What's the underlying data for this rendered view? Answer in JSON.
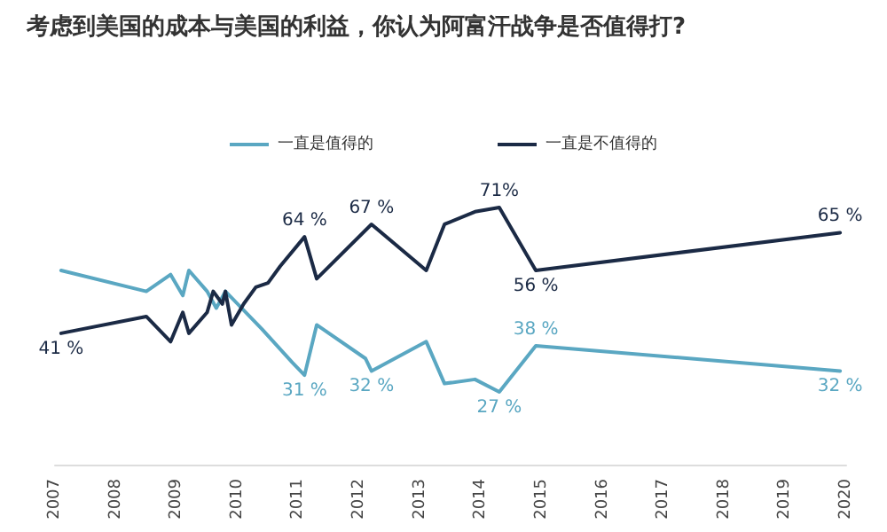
{
  "chart_data": {
    "type": "line",
    "title": "考虑到美国的成本与美国的利益，你认为阿富汗战争是否值得打?",
    "xlim": [
      2007,
      2020
    ],
    "xticks": [
      2007,
      2008,
      2009,
      2010,
      2011,
      2012,
      2013,
      2014,
      2015,
      2016,
      2017,
      2018,
      2019,
      2020
    ],
    "tick_labels": "x",
    "grid": false,
    "legend": "top",
    "marker": "none",
    "line_style": "solid",
    "series": [
      {
        "name": "一直是值得的",
        "color": "#5aa7c2",
        "x": [
          2007.1,
          2008.5,
          2008.9,
          2009.1,
          2009.2,
          2009.5,
          2009.65,
          2009.8,
          2010.4,
          2010.9,
          2011.1,
          2011.3,
          2012.1,
          2012.2,
          2013.1,
          2013.4,
          2013.9,
          2014.3,
          2014.9,
          2019.9
        ],
        "values": [
          56,
          51,
          55,
          50,
          56,
          51,
          47,
          51,
          42,
          34,
          31,
          43,
          35,
          32,
          39,
          29,
          30,
          27,
          38,
          32
        ],
        "value_labels": [
          null,
          null,
          null,
          null,
          null,
          null,
          null,
          null,
          null,
          null,
          "31 %",
          null,
          null,
          "32 %",
          null,
          null,
          null,
          "27 %",
          "38 %",
          "32 %"
        ]
      },
      {
        "name": "一直是不值得的",
        "color": "#1b2a45",
        "x": [
          2007.1,
          2008.5,
          2008.9,
          2009.1,
          2009.2,
          2009.5,
          2009.6,
          2009.75,
          2009.8,
          2009.9,
          2010.1,
          2010.3,
          2010.5,
          2010.7,
          2011.1,
          2011.3,
          2012.2,
          2013.1,
          2013.4,
          2013.9,
          2014.3,
          2014.9,
          2019.9
        ],
        "values": [
          41,
          45,
          39,
          46,
          41,
          46,
          51,
          48,
          51,
          43,
          48,
          52,
          53,
          57,
          64,
          54,
          67,
          56,
          67,
          70,
          71,
          56,
          65
        ],
        "value_labels": [
          "41 %",
          null,
          null,
          null,
          null,
          null,
          null,
          null,
          null,
          null,
          null,
          null,
          null,
          null,
          "64 %",
          null,
          "67 %",
          null,
          null,
          null,
          "71%",
          "56 %",
          "65 %"
        ]
      }
    ]
  }
}
